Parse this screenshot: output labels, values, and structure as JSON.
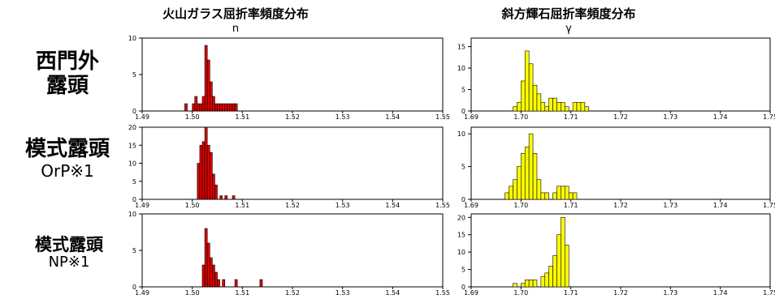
{
  "column_titles": [
    {
      "title": "火山ガラス屈折率頻度分布",
      "symbol": "n"
    },
    {
      "title": "斜方輝石屈折率頻度分布",
      "symbol": "γ"
    }
  ],
  "row_labels": [
    {
      "line1": "西門外",
      "line2": "露頭"
    },
    {
      "line1": "模式露頭",
      "line2": "OrP※1"
    },
    {
      "line1": "模式露頭",
      "line2": "NP※1"
    }
  ],
  "colors": {
    "glass": "#dd0000",
    "opx": "#ffff00",
    "edge": "#000000"
  },
  "chart_data": [
    {
      "type": "bar",
      "row": 0,
      "col": 0,
      "mineral": "glass",
      "xlim": [
        1.49,
        1.55
      ],
      "ylim": [
        0,
        10
      ],
      "yticks": [
        0,
        5,
        10
      ],
      "xticks": [
        "1.49",
        "1.50",
        "1.51",
        "1.52",
        "1.53",
        "1.54",
        "1.55"
      ],
      "bin_width": 0.0005,
      "bins": [
        [
          1.4985,
          1
        ],
        [
          1.5,
          1
        ],
        [
          1.5005,
          2
        ],
        [
          1.501,
          1
        ],
        [
          1.5015,
          1
        ],
        [
          1.502,
          2
        ],
        [
          1.5025,
          9
        ],
        [
          1.503,
          7
        ],
        [
          1.5035,
          4
        ],
        [
          1.504,
          2
        ],
        [
          1.5045,
          1
        ],
        [
          1.505,
          1
        ],
        [
          1.5055,
          1
        ],
        [
          1.506,
          1
        ],
        [
          1.5065,
          1
        ],
        [
          1.507,
          1
        ],
        [
          1.5075,
          1
        ],
        [
          1.508,
          1
        ],
        [
          1.5085,
          1
        ]
      ]
    },
    {
      "type": "bar",
      "row": 0,
      "col": 1,
      "mineral": "opx",
      "xlim": [
        1.69,
        1.75
      ],
      "ylim": [
        0,
        17
      ],
      "yticks": [
        0,
        5,
        10,
        15
      ],
      "xticks": [
        "1.69",
        "1.70",
        "1.71",
        "1.72",
        "1.73",
        "1.74",
        "1.75"
      ],
      "bin_width": 0.0008,
      "bins": [
        [
          1.6984,
          1
        ],
        [
          1.6992,
          2
        ],
        [
          1.7,
          7
        ],
        [
          1.7008,
          14
        ],
        [
          1.7016,
          11
        ],
        [
          1.7024,
          6
        ],
        [
          1.7032,
          4
        ],
        [
          1.704,
          2
        ],
        [
          1.7048,
          1
        ],
        [
          1.7056,
          3
        ],
        [
          1.7064,
          3
        ],
        [
          1.7072,
          2
        ],
        [
          1.708,
          2
        ],
        [
          1.7088,
          1
        ],
        [
          1.7104,
          2
        ],
        [
          1.7112,
          2
        ],
        [
          1.712,
          2
        ],
        [
          1.7128,
          1
        ]
      ]
    },
    {
      "type": "bar",
      "row": 1,
      "col": 0,
      "mineral": "glass",
      "xlim": [
        1.49,
        1.55
      ],
      "ylim": [
        0,
        20
      ],
      "yticks": [
        0,
        5,
        10,
        15,
        20
      ],
      "xticks": [
        "1.49",
        "1.50",
        "1.51",
        "1.52",
        "1.53",
        "1.54",
        "1.55"
      ],
      "bin_width": 0.0005,
      "bins": [
        [
          1.501,
          10
        ],
        [
          1.5015,
          15
        ],
        [
          1.502,
          16
        ],
        [
          1.5025,
          20
        ],
        [
          1.503,
          15
        ],
        [
          1.5035,
          13
        ],
        [
          1.504,
          7
        ],
        [
          1.5045,
          4
        ],
        [
          1.5055,
          1
        ],
        [
          1.5065,
          1
        ],
        [
          1.508,
          1
        ]
      ]
    },
    {
      "type": "bar",
      "row": 1,
      "col": 1,
      "mineral": "opx",
      "xlim": [
        1.69,
        1.75
      ],
      "ylim": [
        0,
        11
      ],
      "yticks": [
        0,
        5,
        10
      ],
      "xticks": [
        "1.69",
        "1.70",
        "1.71",
        "1.72",
        "1.73",
        "1.74",
        "1.75"
      ],
      "bin_width": 0.0008,
      "bins": [
        [
          1.6968,
          1
        ],
        [
          1.6976,
          2
        ],
        [
          1.6984,
          3
        ],
        [
          1.6992,
          5
        ],
        [
          1.7,
          7
        ],
        [
          1.7008,
          8
        ],
        [
          1.7016,
          10
        ],
        [
          1.7024,
          7
        ],
        [
          1.7032,
          3
        ],
        [
          1.704,
          1
        ],
        [
          1.7048,
          1
        ],
        [
          1.7064,
          1
        ],
        [
          1.7072,
          2
        ],
        [
          1.708,
          2
        ],
        [
          1.7088,
          2
        ],
        [
          1.7096,
          1
        ],
        [
          1.7104,
          1
        ]
      ]
    },
    {
      "type": "bar",
      "row": 2,
      "col": 0,
      "mineral": "glass",
      "xlim": [
        1.49,
        1.55
      ],
      "ylim": [
        0,
        10
      ],
      "yticks": [
        0,
        5,
        10
      ],
      "xticks": [
        "1.49",
        "1.50",
        "1.51",
        "1.52",
        "1.53",
        "1.54",
        "1.55"
      ],
      "bin_width": 0.0005,
      "bins": [
        [
          1.502,
          3
        ],
        [
          1.5025,
          8
        ],
        [
          1.503,
          6
        ],
        [
          1.5035,
          4
        ],
        [
          1.504,
          3
        ],
        [
          1.5045,
          2
        ],
        [
          1.505,
          1
        ],
        [
          1.506,
          1
        ],
        [
          1.5085,
          1
        ],
        [
          1.5135,
          1
        ]
      ]
    },
    {
      "type": "bar",
      "row": 2,
      "col": 1,
      "mineral": "opx",
      "xlim": [
        1.69,
        1.75
      ],
      "ylim": [
        0,
        21
      ],
      "yticks": [
        0,
        5,
        10,
        15,
        20
      ],
      "xticks": [
        "1.69",
        "1.70",
        "1.71",
        "1.72",
        "1.73",
        "1.74",
        "1.75"
      ],
      "bin_width": 0.0008,
      "bins": [
        [
          1.6984,
          1
        ],
        [
          1.7,
          1
        ],
        [
          1.7008,
          2
        ],
        [
          1.7016,
          2
        ],
        [
          1.7024,
          2
        ],
        [
          1.704,
          3
        ],
        [
          1.7048,
          4
        ],
        [
          1.7056,
          6
        ],
        [
          1.7064,
          9
        ],
        [
          1.7072,
          15
        ],
        [
          1.708,
          20
        ],
        [
          1.7088,
          12
        ]
      ]
    }
  ]
}
